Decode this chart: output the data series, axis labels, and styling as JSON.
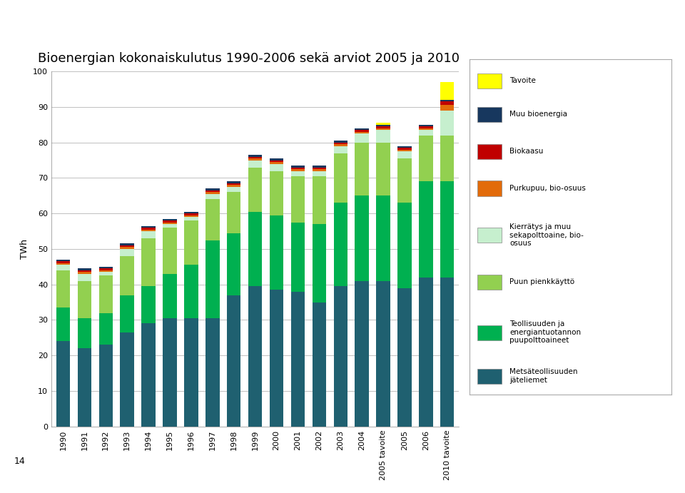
{
  "title": "Bioenergian kokonaiskulutus 1990-2006 sekä arviot 2005 ja 2010",
  "ylabel": "TWh",
  "categories": [
    "1990",
    "1991",
    "1992",
    "1993",
    "1994",
    "1995",
    "1996",
    "1997",
    "1998",
    "1999",
    "2000",
    "2001",
    "2002",
    "2003",
    "2004",
    "2005 tavoite",
    "2005",
    "2006",
    "2010 tavoite"
  ],
  "series": [
    {
      "name": "Metsäteollisuuden jäteliemet",
      "color": "#1f6070",
      "values": [
        24.0,
        22.0,
        23.0,
        26.5,
        29.0,
        30.5,
        30.5,
        30.5,
        37.0,
        39.5,
        38.5,
        38.0,
        35.0,
        39.5,
        41.0,
        41.0,
        39.0,
        42.0,
        42.0
      ]
    },
    {
      "name": "Teollisuuden ja energiantuotannon puupolttoaineet",
      "color": "#00b050",
      "values": [
        9.5,
        8.5,
        9.0,
        10.5,
        10.5,
        12.5,
        15.0,
        22.0,
        17.5,
        21.0,
        21.0,
        19.5,
        22.0,
        23.5,
        24.0,
        24.0,
        24.0,
        27.0,
        27.0
      ]
    },
    {
      "name": "Puun pienkkäyttö",
      "color": "#92d050",
      "values": [
        10.5,
        10.5,
        10.5,
        11.0,
        13.5,
        13.0,
        12.5,
        11.5,
        11.5,
        12.5,
        12.5,
        13.0,
        13.5,
        14.0,
        15.0,
        15.0,
        12.5,
        13.0,
        13.0
      ]
    },
    {
      "name": "Kierrätys ja muu sekapolttoaine, bio-osuus",
      "color": "#c6efce",
      "values": [
        1.5,
        2.0,
        1.0,
        2.0,
        2.0,
        1.0,
        1.0,
        1.5,
        1.5,
        2.0,
        2.0,
        1.5,
        1.5,
        2.0,
        2.5,
        3.5,
        2.0,
        1.5,
        7.0
      ]
    },
    {
      "name": "Purkupuu, bio-osuus",
      "color": "#e26b0a",
      "values": [
        0.5,
        0.5,
        0.5,
        0.5,
        0.5,
        0.5,
        0.5,
        0.5,
        0.5,
        0.5,
        0.5,
        0.5,
        0.5,
        0.5,
        0.5,
        0.5,
        0.5,
        0.5,
        1.5
      ]
    },
    {
      "name": "Biokaasu",
      "color": "#c00000",
      "values": [
        0.5,
        0.5,
        0.5,
        0.5,
        0.5,
        0.5,
        0.5,
        0.5,
        0.5,
        0.5,
        0.5,
        0.5,
        0.5,
        0.5,
        0.5,
        0.5,
        0.5,
        0.5,
        1.0
      ]
    },
    {
      "name": "Muu bioenergia",
      "color": "#17375e",
      "values": [
        0.5,
        0.5,
        0.5,
        0.5,
        0.5,
        0.5,
        0.5,
        0.5,
        0.5,
        0.5,
        0.5,
        0.5,
        0.5,
        0.5,
        0.5,
        0.5,
        0.5,
        0.5,
        0.5
      ]
    },
    {
      "name": "Tavoite",
      "color": "#ffff00",
      "values": [
        0,
        0,
        0,
        0,
        0,
        0,
        0,
        0,
        0,
        0,
        0,
        0,
        0,
        0,
        0,
        0.5,
        0,
        0,
        5.0
      ]
    }
  ],
  "ylim": [
    0,
    100
  ],
  "yticks": [
    0,
    10,
    20,
    30,
    40,
    50,
    60,
    70,
    80,
    90,
    100
  ],
  "header_color": "#f07800",
  "bg_color": "#ffffff",
  "grid_color": "#c0c0c0",
  "title_fontsize": 13,
  "axis_fontsize": 9,
  "legend_items": [
    {
      "label": "Tavoite",
      "color": "#ffff00"
    },
    {
      "label": "Muu bioenergia",
      "color": "#17375e"
    },
    {
      "label": "Biokaasu",
      "color": "#c00000"
    },
    {
      "label": "Purkupuu, bio-osuus",
      "color": "#e26b0a"
    },
    {
      "label": "Kierrätys ja muu\nsekapolttoaine, bio-\nosuus",
      "color": "#c6efce"
    },
    {
      "label": "Puun pienkkäyttö",
      "color": "#92d050"
    },
    {
      "label": "Teollisuuden ja\nenergiantuotannon\npuupolttoaineet",
      "color": "#00b050"
    },
    {
      "label": "Metsäteollisuuden\njäteliemet",
      "color": "#1f6070"
    }
  ]
}
